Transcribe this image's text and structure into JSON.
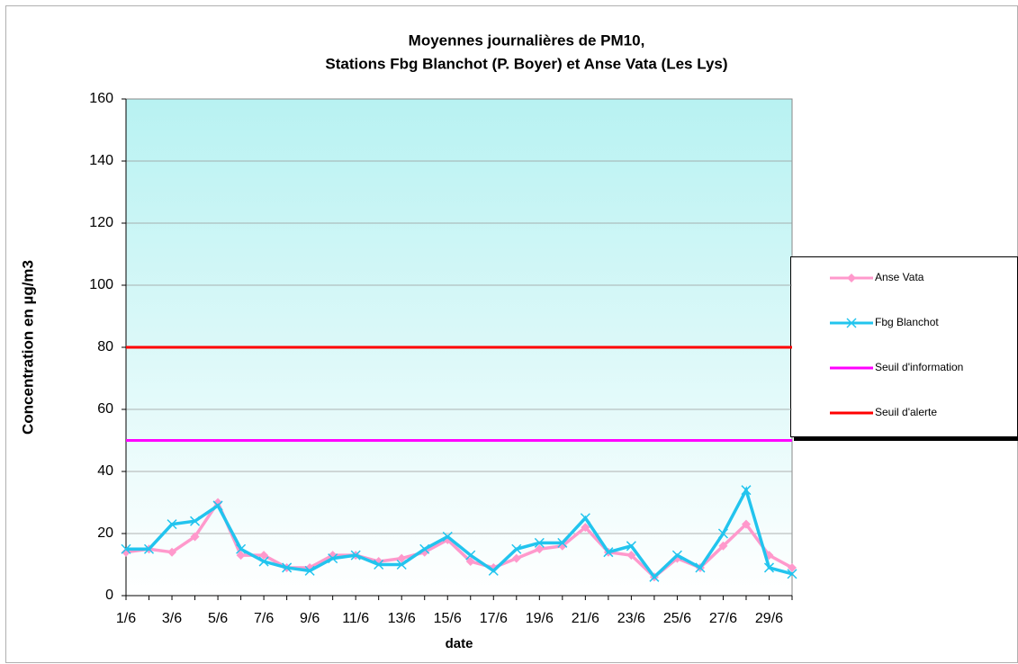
{
  "chart_data": {
    "type": "line",
    "title": [
      "Moyennes journalières de PM10,",
      "Stations Fbg Blanchot (P. Boyer) et Anse Vata (Les Lys)"
    ],
    "y_label": "Concentration en µg/m3",
    "x_label": "date",
    "categories": [
      "1/6",
      null,
      "3/6",
      null,
      "5/6",
      null,
      "7/6",
      null,
      "9/6",
      null,
      "11/6",
      null,
      "13/6",
      null,
      "15/6",
      null,
      "17/6",
      null,
      "19/6",
      null,
      "21/6",
      null,
      "23/6",
      null,
      "25/6",
      null,
      "27/6",
      null,
      "29/6",
      null
    ],
    "series": [
      {
        "name": "Anse Vata",
        "color": "#ff99cc",
        "marker": "diamond",
        "values": [
          14,
          15,
          14,
          19,
          30,
          13,
          13,
          9,
          9,
          13,
          13,
          11,
          12,
          14,
          18,
          11,
          9,
          12,
          15,
          16,
          22,
          14,
          13,
          6,
          12,
          9,
          16,
          23,
          13,
          9
        ]
      },
      {
        "name": "Fbg Blanchot",
        "color": "#22c4ee",
        "marker": "x",
        "values": [
          15,
          15,
          23,
          24,
          29,
          15,
          11,
          9,
          8,
          12,
          13,
          10,
          10,
          15,
          19,
          13,
          8,
          15,
          17,
          17,
          25,
          14,
          16,
          6,
          13,
          9,
          20,
          34,
          9,
          7
        ]
      },
      {
        "name": "Seuil d'information",
        "color": "#ff00ff",
        "marker": "none",
        "values": [
          50,
          50,
          50,
          50,
          50,
          50,
          50,
          50,
          50,
          50,
          50,
          50,
          50,
          50,
          50,
          50,
          50,
          50,
          50,
          50,
          50,
          50,
          50,
          50,
          50,
          50,
          50,
          50,
          50,
          50
        ]
      },
      {
        "name": "Seuil d'alerte",
        "color": "#ff0000",
        "marker": "none",
        "values": [
          80,
          80,
          80,
          80,
          80,
          80,
          80,
          80,
          80,
          80,
          80,
          80,
          80,
          80,
          80,
          80,
          80,
          80,
          80,
          80,
          80,
          80,
          80,
          80,
          80,
          80,
          80,
          80,
          80,
          80
        ]
      }
    ],
    "ylim": [
      0,
      160
    ],
    "yticks": [
      0,
      20,
      40,
      60,
      80,
      100,
      120,
      140,
      160
    ],
    "grid": true,
    "legend": "right"
  }
}
